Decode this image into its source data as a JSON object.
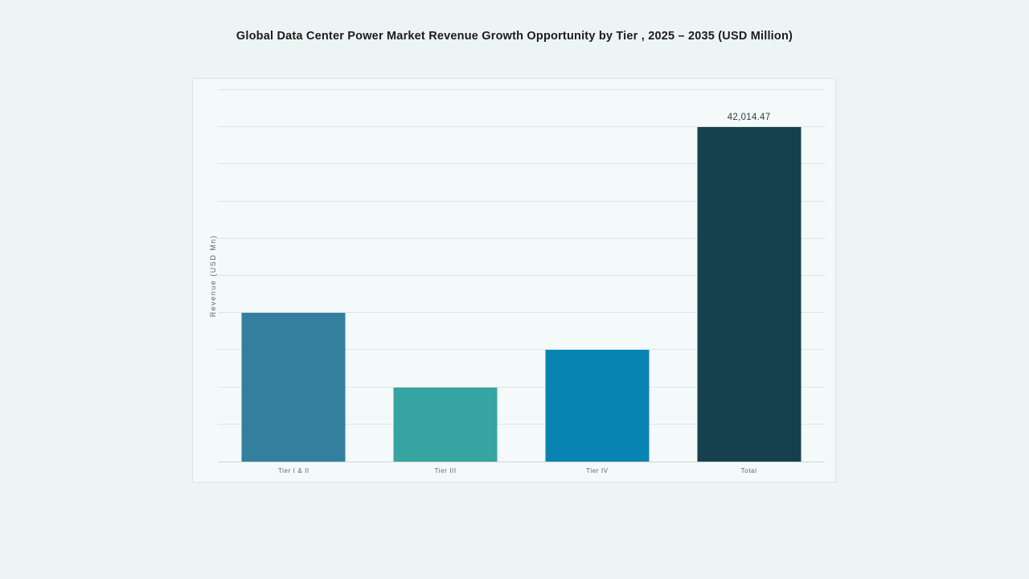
{
  "title": "Global Data Center Power Market Revenue Growth Opportunity by Tier , 2025 – 2035 (USD Million)",
  "chart_data": {
    "type": "bar",
    "title": "Global Data Center Power Market Revenue Growth Opportunity by Tier , 2025 – 2035 (USD Million)",
    "categories": [
      "Tier I & II",
      "Tier III",
      "Tier IV",
      "Total"
    ],
    "values": [
      18673,
      9337,
      14005,
      42014.47
    ],
    "value_labels": [
      "",
      "",
      "",
      "42,014.47"
    ],
    "bar_colors": [
      "#337f9d",
      "#36a4a1",
      "#0884b2",
      "#17404e"
    ],
    "xlabel": "",
    "ylabel": "Revenue (USD Mn)",
    "ylim": [
      0,
      46683
    ],
    "gridline_count": 10,
    "grid": "horizontal",
    "y_tick_labels": "none",
    "legend_position": "none"
  },
  "colors": {
    "page_background": "#ecf5f3",
    "card_background": "#f3faf9",
    "card_border": "#dae1e3",
    "gridline": "#dde4e6",
    "axis_line": "#ccd4d7",
    "title_text": "#1c1c1c",
    "axis_text": "#5d696d",
    "value_label_text": "#2f3c42"
  }
}
